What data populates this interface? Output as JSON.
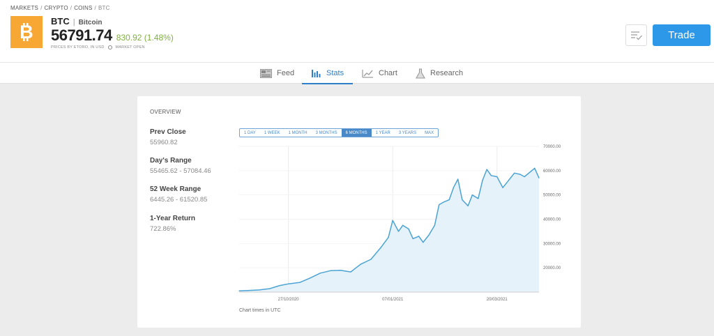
{
  "breadcrumb": [
    "MARKETS",
    "CRYPTO",
    "COINS",
    "BTC"
  ],
  "asset": {
    "symbol": "BTC",
    "name": "Bitcoin",
    "price": "56791.74",
    "change": "830.92 (1.48%)",
    "prices_note": "PRICES BY ETORO, IN USD",
    "market_status": "MARKET OPEN",
    "logo_icon": "bitcoin-icon",
    "logo_color": "#f7a733"
  },
  "actions": {
    "trade_label": "Trade",
    "watchlist_icon": "watchlist-icon"
  },
  "tabs": [
    {
      "label": "Feed",
      "icon": "feed-icon"
    },
    {
      "label": "Stats",
      "icon": "stats-icon",
      "active": true
    },
    {
      "label": "Chart",
      "icon": "chart-icon"
    },
    {
      "label": "Research",
      "icon": "flask-icon"
    }
  ],
  "overview": {
    "title": "OVERVIEW",
    "stats": [
      {
        "label": "Prev Close",
        "value": "55960.82"
      },
      {
        "label": "Day's Range",
        "value": "55465.62 - 57084.46"
      },
      {
        "label": "52 Week Range",
        "value": "6445.26 - 61520.85"
      },
      {
        "label": "1-Year Return",
        "value": "722.86%"
      }
    ],
    "ranges": [
      "1 DAY",
      "1 WEEK",
      "1 MONTH",
      "3 MONTHS",
      "6 MONTHS",
      "1 YEAR",
      "3 YEARS",
      "MAX"
    ],
    "active_range": "6 MONTHS",
    "chart_note": "Chart times in UTC"
  },
  "colors": {
    "accent": "#2d98e8",
    "positive": "#7fb23d",
    "line": "#4aa3d3",
    "fill": "#e6f2fa"
  },
  "chart_data": {
    "type": "area",
    "x": [
      "2020-09-23",
      "2020-09-30",
      "2020-10-07",
      "2020-10-14",
      "2020-10-21",
      "2020-10-27",
      "2020-11-04",
      "2020-11-11",
      "2020-11-18",
      "2020-11-25",
      "2020-12-02",
      "2020-12-09",
      "2020-12-16",
      "2020-12-23",
      "2020-12-30",
      "2021-01-04",
      "2021-01-07",
      "2021-01-11",
      "2021-01-14",
      "2021-01-18",
      "2021-01-21",
      "2021-01-25",
      "2021-01-28",
      "2021-02-01",
      "2021-02-05",
      "2021-02-08",
      "2021-02-11",
      "2021-02-15",
      "2021-02-18",
      "2021-02-21",
      "2021-02-24",
      "2021-02-28",
      "2021-03-03",
      "2021-03-07",
      "2021-03-10",
      "2021-03-13",
      "2021-03-16",
      "2021-03-20",
      "2021-03-24",
      "2021-03-28",
      "2021-04-01",
      "2021-04-05",
      "2021-04-08",
      "2021-04-12",
      "2021-04-15",
      "2021-04-18"
    ],
    "y": [
      10500,
      10700,
      10900,
      11400,
      12700,
      13400,
      14000,
      15800,
      17800,
      18800,
      19000,
      18300,
      21500,
      23500,
      28500,
      32500,
      39500,
      35000,
      37500,
      36000,
      32000,
      33000,
      30500,
      33500,
      37500,
      46000,
      47000,
      48000,
      53000,
      56500,
      48000,
      45500,
      50000,
      48500,
      56000,
      60500,
      58000,
      57500,
      53000,
      56000,
      59000,
      58500,
      57500,
      59500,
      61000,
      57000
    ],
    "x_ticks": [
      "27/10/2020",
      "07/01/2021",
      "20/03/2021"
    ],
    "y_ticks": [
      "20000.00",
      "30000.00",
      "40000.00",
      "50000.00",
      "60000.00",
      "70000.00"
    ],
    "ylim": [
      10000,
      70000
    ],
    "grid": true,
    "y_axis_side": "right"
  }
}
